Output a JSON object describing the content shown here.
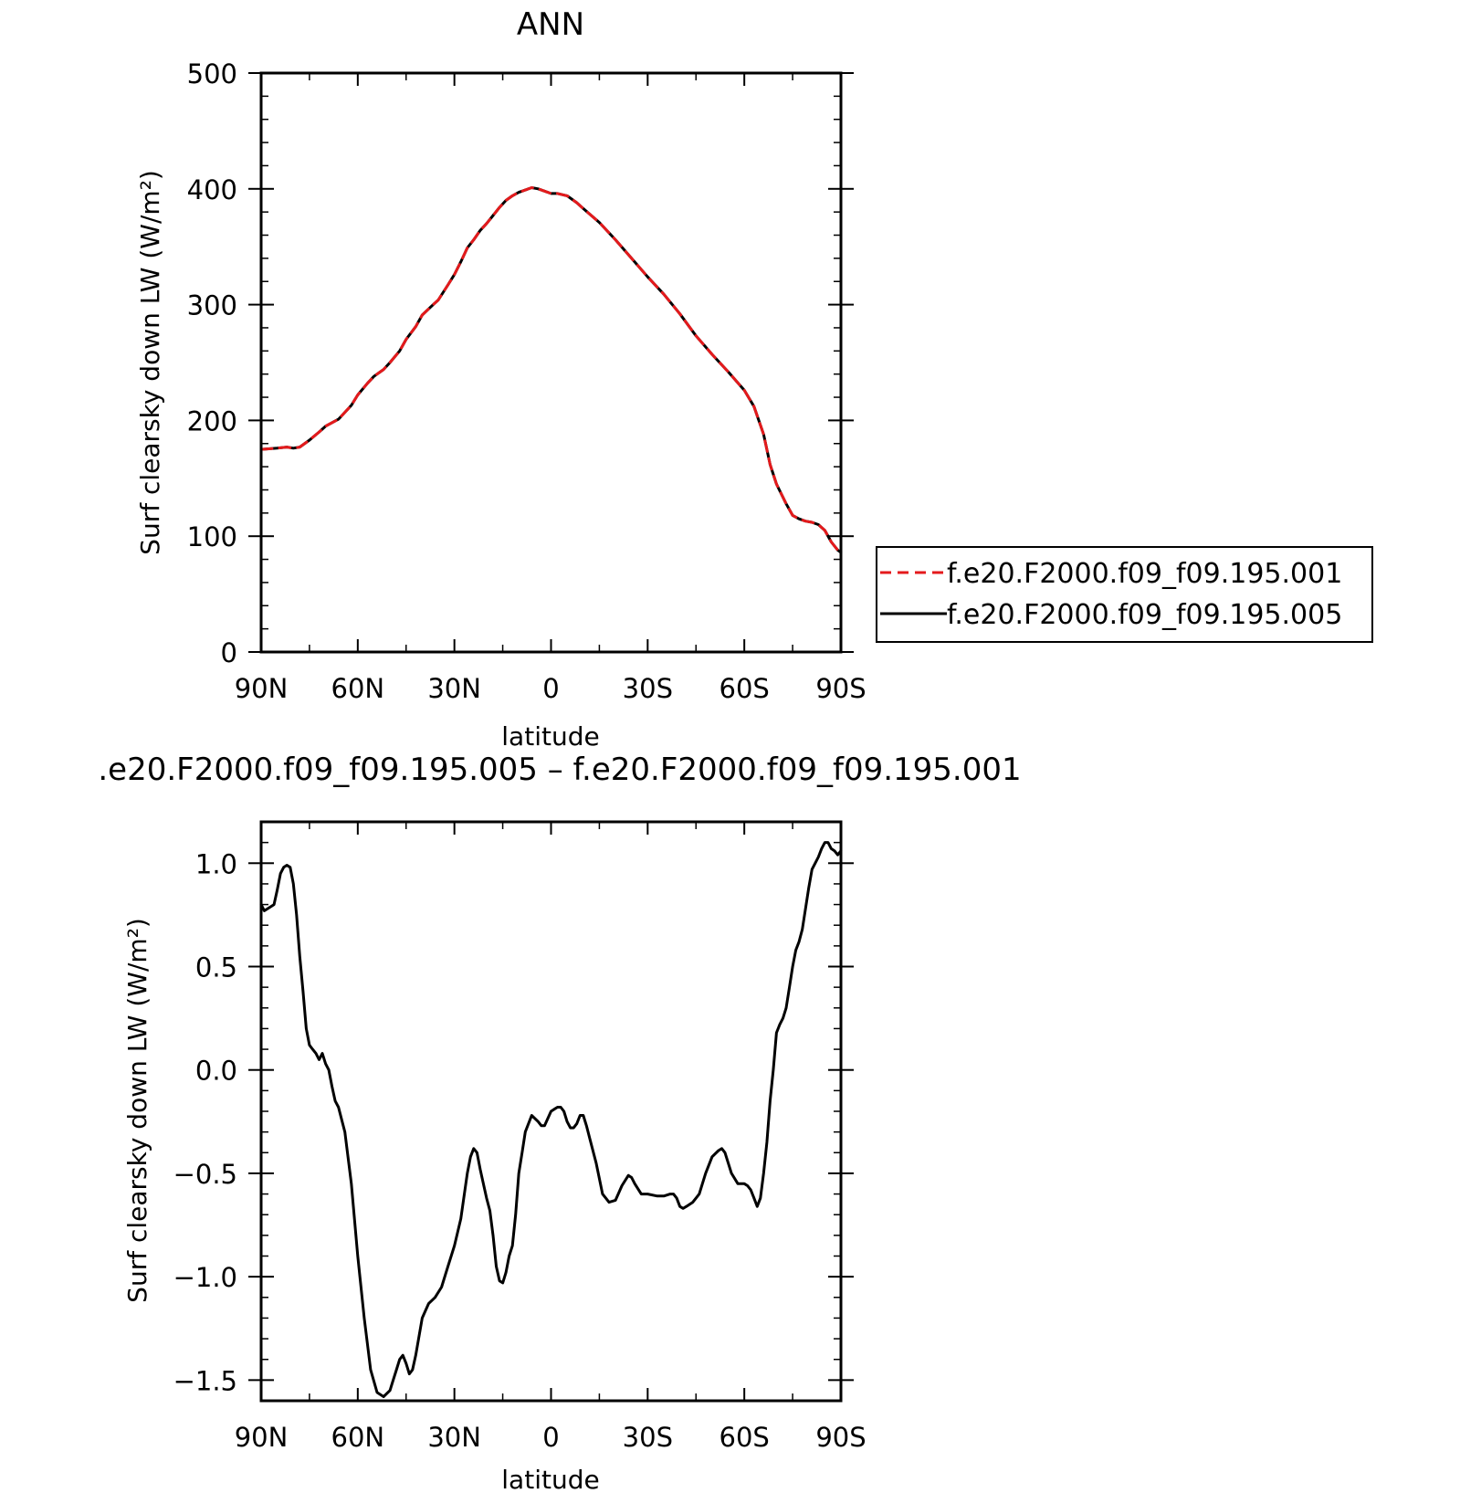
{
  "chart_data": [
    {
      "type": "line",
      "title": "ANN",
      "xlabel": "latitude",
      "ylabel": "Surf clearsky down LW (W/m²)",
      "xlim": [
        90,
        -90
      ],
      "ylim": [
        0,
        500
      ],
      "x_tick_values": [
        90,
        60,
        30,
        0,
        -30,
        -60,
        -90
      ],
      "x_tick_labels": [
        "90N",
        "60N",
        "30N",
        "0",
        "30S",
        "60S",
        "90S"
      ],
      "y_tick_values": [
        0,
        100,
        200,
        300,
        400,
        500
      ],
      "y_tick_labels": [
        "0",
        "100",
        "200",
        "300",
        "400",
        "500"
      ],
      "grid": false,
      "legend_position": "right",
      "series": [
        {
          "name": "f.e20.F2000.f09_f09.195.001",
          "color": "#e41a1c",
          "style": "dashed",
          "x": [
            90,
            85,
            82,
            80,
            78,
            75,
            72,
            70,
            66,
            62,
            60,
            57,
            55,
            52,
            50,
            47,
            45,
            42,
            40,
            37,
            35,
            32,
            30,
            28,
            26,
            24,
            22,
            20,
            18,
            16,
            14,
            12,
            10,
            8,
            6,
            4,
            2,
            0,
            -2,
            -5,
            -8,
            -10,
            -15,
            -20,
            -25,
            -30,
            -35,
            -40,
            -45,
            -50,
            -55,
            -60,
            -63,
            -66,
            -68,
            -70,
            -73,
            -75,
            -77,
            -79,
            -81,
            -83,
            -85,
            -87,
            -89,
            -90
          ],
          "y": [
            175,
            176,
            177,
            176,
            177,
            183,
            190,
            195,
            201,
            213,
            222,
            232,
            238,
            244,
            250,
            260,
            270,
            281,
            291,
            299,
            304,
            317,
            326,
            337,
            349,
            356,
            364,
            370,
            377,
            384,
            390,
            394,
            397,
            399,
            401,
            400,
            398,
            396,
            396,
            394,
            388,
            383,
            371,
            356,
            340,
            324,
            309,
            292,
            273,
            257,
            242,
            226,
            212,
            188,
            162,
            145,
            128,
            118,
            115,
            113,
            112,
            110,
            105,
            95,
            88,
            86
          ]
        },
        {
          "name": "f.e20.F2000.f09_f09.195.005",
          "color": "#000000",
          "style": "solid",
          "x": [
            90,
            85,
            82,
            80,
            78,
            75,
            72,
            70,
            66,
            62,
            60,
            57,
            55,
            52,
            50,
            47,
            45,
            42,
            40,
            37,
            35,
            32,
            30,
            28,
            26,
            24,
            22,
            20,
            18,
            16,
            14,
            12,
            10,
            8,
            6,
            4,
            2,
            0,
            -2,
            -5,
            -8,
            -10,
            -15,
            -20,
            -25,
            -30,
            -35,
            -40,
            -45,
            -50,
            -55,
            -60,
            -63,
            -66,
            -68,
            -70,
            -73,
            -75,
            -77,
            -79,
            -81,
            -83,
            -85,
            -87,
            -89,
            -90
          ],
          "y": [
            175,
            176,
            177,
            176,
            177,
            183,
            190,
            195,
            201,
            213,
            222,
            232,
            238,
            244,
            250,
            260,
            270,
            281,
            291,
            299,
            304,
            317,
            326,
            337,
            349,
            356,
            364,
            370,
            377,
            384,
            390,
            394,
            397,
            399,
            401,
            400,
            398,
            396,
            396,
            394,
            388,
            383,
            371,
            356,
            340,
            324,
            309,
            292,
            273,
            257,
            242,
            226,
            212,
            188,
            162,
            145,
            128,
            118,
            115,
            113,
            112,
            110,
            105,
            95,
            88,
            86
          ]
        }
      ]
    },
    {
      "type": "line",
      "title": ".e20.F2000.f09_f09.195.005 – f.e20.F2000.f09_f09.195.001",
      "xlabel": "latitude",
      "ylabel": "Surf clearsky down LW (W/m²)",
      "xlim": [
        90,
        -90
      ],
      "ylim": [
        -1.6,
        1.2
      ],
      "x_tick_values": [
        90,
        60,
        30,
        0,
        -30,
        -60,
        -90
      ],
      "x_tick_labels": [
        "90N",
        "60N",
        "30N",
        "0",
        "30S",
        "60S",
        "90S"
      ],
      "y_tick_values": [
        1.0,
        0.5,
        0.0,
        -0.5,
        -1.0,
        -1.5
      ],
      "y_tick_labels": [
        "1.0",
        "0.5",
        "0.0",
        "−0.5",
        "−1.0",
        "−1.5"
      ],
      "grid": false,
      "series": [
        {
          "color": "#000000",
          "style": "solid",
          "x": [
            90,
            89,
            88,
            86,
            85,
            84,
            83,
            82,
            81,
            80,
            79,
            78,
            77,
            76,
            75,
            74,
            73,
            72,
            71,
            70,
            69,
            68,
            67,
            66,
            65,
            64,
            62,
            60,
            58,
            56,
            54,
            52,
            50,
            49,
            48,
            47,
            46,
            45,
            44,
            43,
            42,
            40,
            38,
            36,
            34,
            32,
            30,
            28,
            26,
            25,
            24,
            23,
            22,
            21,
            20,
            19,
            18,
            17,
            16,
            15,
            14,
            13,
            12,
            11,
            10,
            9,
            8,
            6,
            4,
            3,
            2,
            0,
            -1,
            -2,
            -3,
            -4,
            -5,
            -6,
            -7,
            -8,
            -9,
            -10,
            -11,
            -12,
            -14,
            -16,
            -17,
            -18,
            -20,
            -22,
            -24,
            -25,
            -26,
            -28,
            -30,
            -33,
            -35,
            -37,
            -38,
            -39,
            -40,
            -41,
            -42,
            -44,
            -46,
            -48,
            -50,
            -52,
            -53,
            -54,
            -56,
            -58,
            -60,
            -61,
            -62,
            -63,
            -64,
            -65,
            -66,
            -67,
            -68,
            -69,
            -70,
            -71,
            -72,
            -73,
            -74,
            -75,
            -76,
            -77,
            -78,
            -79,
            -80,
            -81,
            -82,
            -83,
            -84,
            -85,
            -86,
            -87,
            -88,
            -89,
            -90
          ],
          "y": [
            0.8,
            0.77,
            0.78,
            0.8,
            0.87,
            0.95,
            0.98,
            0.99,
            0.98,
            0.9,
            0.75,
            0.55,
            0.38,
            0.2,
            0.12,
            0.1,
            0.08,
            0.05,
            0.08,
            0.03,
            0.0,
            -0.08,
            -0.15,
            -0.18,
            -0.24,
            -0.3,
            -0.55,
            -0.9,
            -1.2,
            -1.45,
            -1.56,
            -1.58,
            -1.55,
            -1.5,
            -1.45,
            -1.4,
            -1.38,
            -1.42,
            -1.47,
            -1.45,
            -1.38,
            -1.2,
            -1.13,
            -1.1,
            -1.05,
            -0.95,
            -0.85,
            -0.72,
            -0.5,
            -0.42,
            -0.38,
            -0.4,
            -0.48,
            -0.55,
            -0.62,
            -0.68,
            -0.8,
            -0.95,
            -1.02,
            -1.03,
            -0.98,
            -0.9,
            -0.85,
            -0.7,
            -0.5,
            -0.4,
            -0.3,
            -0.22,
            -0.25,
            -0.27,
            -0.27,
            -0.2,
            -0.19,
            -0.18,
            -0.18,
            -0.2,
            -0.25,
            -0.28,
            -0.28,
            -0.26,
            -0.22,
            -0.22,
            -0.27,
            -0.33,
            -0.45,
            -0.6,
            -0.62,
            -0.64,
            -0.63,
            -0.56,
            -0.51,
            -0.52,
            -0.55,
            -0.6,
            -0.6,
            -0.61,
            -0.61,
            -0.6,
            -0.6,
            -0.62,
            -0.66,
            -0.67,
            -0.66,
            -0.64,
            -0.6,
            -0.5,
            -0.42,
            -0.39,
            -0.38,
            -0.4,
            -0.5,
            -0.55,
            -0.55,
            -0.56,
            -0.58,
            -0.62,
            -0.66,
            -0.62,
            -0.5,
            -0.35,
            -0.15,
            0.0,
            0.18,
            0.22,
            0.25,
            0.3,
            0.4,
            0.5,
            0.58,
            0.62,
            0.68,
            0.78,
            0.88,
            0.97,
            1.0,
            1.03,
            1.07,
            1.1,
            1.1,
            1.07,
            1.06,
            1.04,
            1.06
          ]
        }
      ]
    }
  ]
}
